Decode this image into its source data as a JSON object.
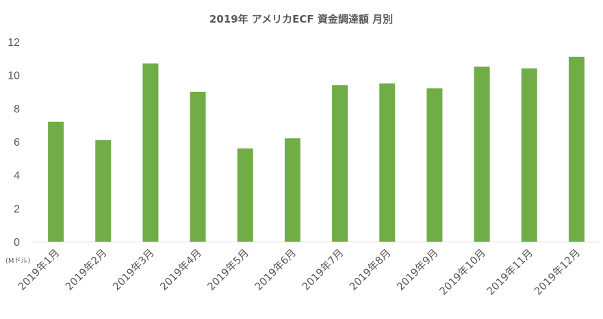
{
  "chart_data": {
    "type": "bar",
    "title": "2019年 アメリカECF 資金調達額 月別",
    "unit_label": "(Mドル)",
    "categories": [
      "2019年1月",
      "2019年2月",
      "2019年3月",
      "2019年4月",
      "2019年5月",
      "2019年6月",
      "2019年7月",
      "2019年8月",
      "2019年9月",
      "2019年10月",
      "2019年11月",
      "2019年12月"
    ],
    "values": [
      7.2,
      6.1,
      10.7,
      9.0,
      5.6,
      6.2,
      9.4,
      9.5,
      9.2,
      10.5,
      10.4,
      11.1
    ],
    "ylim": [
      0,
      12
    ],
    "yticks": [
      0,
      2,
      4,
      6,
      8,
      10,
      12
    ],
    "grid": false,
    "bar_color": "#70ad47"
  }
}
